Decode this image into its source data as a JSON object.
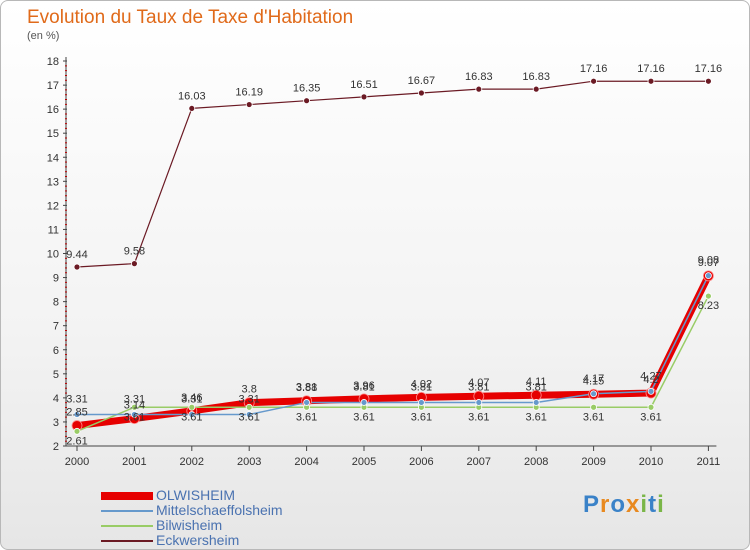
{
  "title": "Evolution du Taux de Taxe d'Habitation",
  "unit": "(en %)",
  "brand": {
    "letters": [
      "P",
      "r",
      "o",
      "x",
      "i",
      "t",
      "i"
    ],
    "colors": [
      "#3a82c8",
      "#e8891f",
      "#3a82c8",
      "#e8891f",
      "#7ab648",
      "#3a82c8",
      "#7ab648"
    ]
  },
  "chart_data": {
    "type": "line",
    "x": [
      "2000",
      "2001",
      "2002",
      "2003",
      "2004",
      "2005",
      "2006",
      "2007",
      "2008",
      "2009",
      "2010",
      "2011"
    ],
    "ylim": [
      2,
      18
    ],
    "yticks": [
      "2",
      "3",
      "4",
      "5",
      "6",
      "7",
      "8",
      "9",
      "10",
      "11",
      "12",
      "13",
      "14",
      "15",
      "16",
      "17",
      "18"
    ],
    "grid": false,
    "legend": "bottom-left",
    "series": [
      {
        "name": "OLWISHEIM",
        "color": "#e60000",
        "values": [
          2.85,
          3.14,
          3.46,
          3.8,
          3.88,
          3.96,
          4.02,
          4.07,
          4.11,
          4.15,
          4.2,
          9.07
        ],
        "labels": [
          "2.85",
          "3.14",
          "3.46",
          "3.8",
          "3.88",
          "3.96",
          "4.02",
          "4.07",
          "4.11",
          "4.15",
          "4.2",
          "9.07"
        ]
      },
      {
        "name": "Mittelschaeffolsheim",
        "color": "#6699cc",
        "values": [
          3.31,
          3.31,
          3.31,
          3.31,
          3.81,
          3.81,
          3.81,
          3.81,
          3.81,
          4.17,
          4.27,
          9.08
        ],
        "labels": [
          "3.31",
          "3.31",
          "3.31",
          "3.31",
          "3.81",
          "3.81",
          "3.81",
          "3.81",
          "3.81",
          "4.17",
          "4.27",
          "9.08"
        ]
      },
      {
        "name": "Bilwisheim",
        "color": "#99cc66",
        "values": [
          2.61,
          3.61,
          3.61,
          3.61,
          3.61,
          3.61,
          3.61,
          3.61,
          3.61,
          3.61,
          3.61,
          8.23
        ],
        "labels": [
          "2.61",
          "3.61",
          "3.61",
          "3.61",
          "3.61",
          "3.61",
          "3.61",
          "3.61",
          "3.61",
          "3.61",
          "3.61",
          "8.23"
        ]
      },
      {
        "name": "Eckwersheim",
        "color": "#6b1a24",
        "values": [
          9.44,
          9.58,
          16.03,
          16.19,
          16.35,
          16.51,
          16.67,
          16.83,
          16.83,
          17.16,
          17.16,
          17.16
        ],
        "labels": [
          "9.44",
          "9.58",
          "16.03",
          "16.19",
          "16.35",
          "16.51",
          "16.67",
          "16.83",
          "16.83",
          "17.16",
          "17.16",
          "17.16"
        ]
      }
    ]
  }
}
